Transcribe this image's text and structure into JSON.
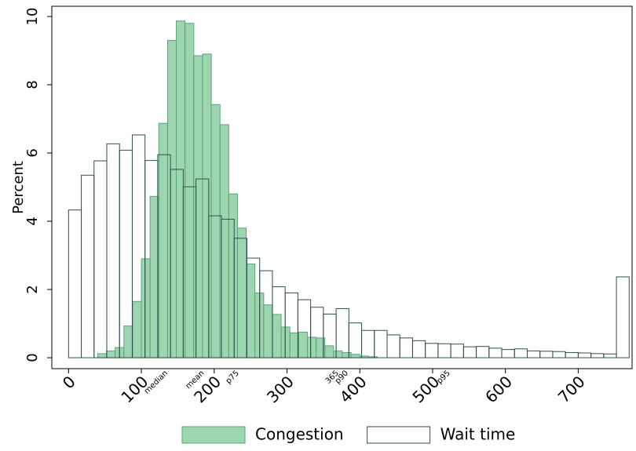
{
  "chart_data": {
    "type": "histogram",
    "y_label": "Percent",
    "xlim": [
      -23,
      774
    ],
    "ylim": [
      -0.32,
      10.3
    ],
    "xticks": [
      0,
      100,
      200,
      300,
      400,
      500,
      600,
      700
    ],
    "yticks": [
      0,
      2,
      4,
      6,
      8,
      10
    ],
    "legend": "bottom",
    "series": [
      {
        "name": "Congestion",
        "color": "#7cc797",
        "edge": "#5aa678",
        "bins": [
          40,
          52,
          64,
          76,
          88,
          100,
          112,
          124,
          136,
          148,
          160,
          172,
          184,
          196,
          208,
          220,
          232,
          244,
          256,
          268,
          280,
          292,
          304,
          316,
          328,
          340,
          352,
          364,
          376,
          388,
          400,
          412,
          424
        ],
        "values": [
          0.12,
          0.2,
          0.3,
          0.93,
          1.65,
          2.9,
          4.73,
          6.87,
          9.3,
          9.87,
          9.8,
          8.85,
          8.9,
          7.42,
          6.83,
          4.8,
          3.8,
          2.75,
          1.9,
          1.55,
          1.27,
          0.9,
          0.73,
          0.75,
          0.6,
          0.58,
          0.35,
          0.2,
          0.15,
          0.1,
          0.05,
          0.03
        ]
      },
      {
        "name": "Wait time",
        "color": "#ffffff",
        "edge": "#2f4f4f",
        "bins": [
          0,
          17.5,
          35,
          52.5,
          70,
          87.5,
          105,
          122.5,
          140,
          157.5,
          175,
          192.5,
          210,
          227.5,
          245,
          262.5,
          280,
          297.5,
          315,
          332.5,
          350,
          367.5,
          385,
          402.5,
          420,
          437.5,
          455,
          472.5,
          490,
          507.5,
          525,
          542.5,
          560,
          577.5,
          595,
          612.5,
          630,
          647.5,
          665,
          682.5,
          700,
          717.5,
          735,
          752.5,
          770
        ],
        "values": [
          4.33,
          5.35,
          5.77,
          6.27,
          6.08,
          6.53,
          5.78,
          5.95,
          5.52,
          5.01,
          5.24,
          4.16,
          4.06,
          3.5,
          2.92,
          2.55,
          2.08,
          1.9,
          1.7,
          1.48,
          1.28,
          1.44,
          1.02,
          0.8,
          0.8,
          0.67,
          0.58,
          0.5,
          0.42,
          0.41,
          0.4,
          0.32,
          0.33,
          0.28,
          0.24,
          0.26,
          0.2,
          0.19,
          0.18,
          0.15,
          0.14,
          0.12,
          0.11,
          2.37
        ]
      }
    ],
    "annotations": [
      {
        "x": 130,
        "label": "median"
      },
      {
        "x": 180,
        "label": "mean"
      },
      {
        "x": 228,
        "label": "p75"
      },
      {
        "x": 365,
        "label": "365"
      },
      {
        "x": 378,
        "label": "p90"
      },
      {
        "x": 518,
        "label": "p95"
      }
    ]
  }
}
